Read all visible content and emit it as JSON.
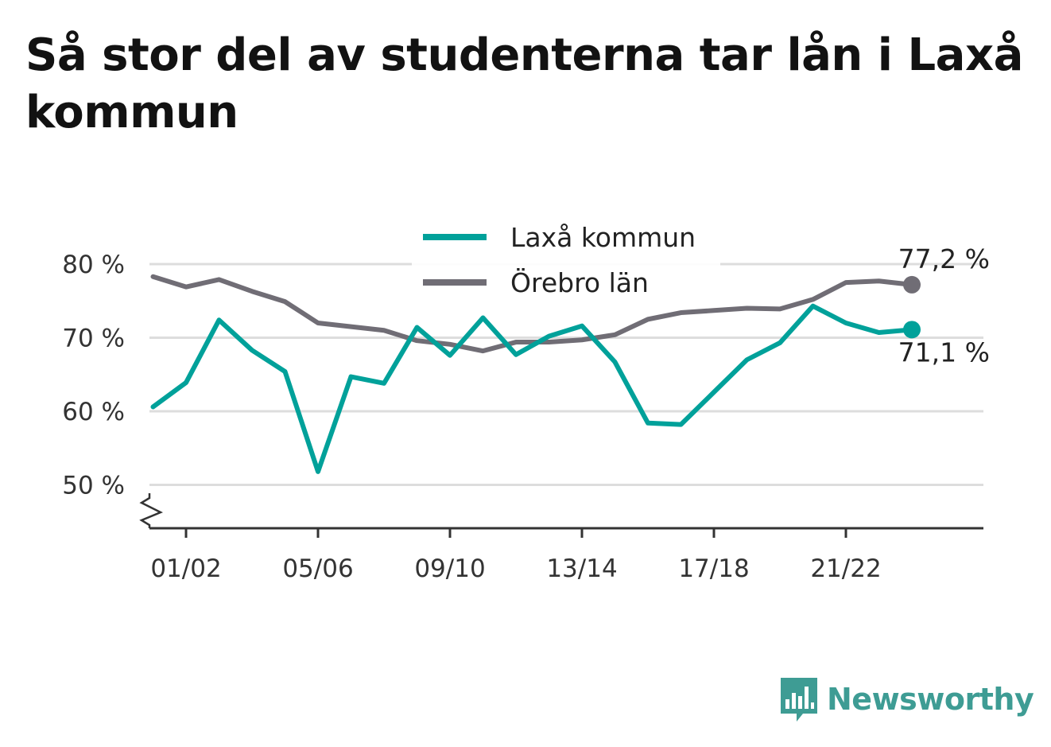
{
  "title": "Så stor del av studenterna tar lån i Laxå kommun",
  "brand": {
    "name": "Newsworthy"
  },
  "colors": {
    "laxa": "#00a19a",
    "orebro": "#706d75",
    "grid": "#dddddd",
    "axis": "#333333"
  },
  "chart_data": {
    "type": "line",
    "title": "Så stor del av studenterna tar lån i Laxå kommun",
    "x": [
      "00/01",
      "01/02",
      "02/03",
      "03/04",
      "04/05",
      "05/06",
      "06/07",
      "07/08",
      "08/09",
      "09/10",
      "10/11",
      "11/12",
      "12/13",
      "13/14",
      "14/15",
      "15/16",
      "16/17",
      "17/18",
      "18/19",
      "19/20",
      "20/21",
      "21/22",
      "22/23",
      "23/24",
      "24/25"
    ],
    "x_ticks": [
      "01/02",
      "05/06",
      "09/10",
      "13/14",
      "17/18",
      "21/22"
    ],
    "y_ticks": [
      "50 %",
      "60 %",
      "70 %",
      "80 %"
    ],
    "y_tick_values": [
      50,
      60,
      70,
      80
    ],
    "ylim": [
      44,
      80
    ],
    "axis_break": true,
    "legend_position": "top-center",
    "series": [
      {
        "name": "Laxå kommun",
        "color": "#00a19a",
        "values": [
          60.6,
          63.9,
          72.4,
          68.3,
          65.4,
          51.8,
          64.7,
          63.8,
          71.4,
          67.6,
          72.7,
          67.7,
          70.2,
          71.6,
          66.7,
          58.4,
          58.2,
          62.6,
          67.0,
          69.3,
          74.3,
          72.0,
          70.7,
          71.1,
          null
        ],
        "end_label": "71,1 %"
      },
      {
        "name": "Örebro län",
        "color": "#706d75",
        "values": [
          78.3,
          76.9,
          77.9,
          76.3,
          74.9,
          72.0,
          71.5,
          71.0,
          69.6,
          69.1,
          68.2,
          69.4,
          69.4,
          69.7,
          70.4,
          72.5,
          73.4,
          73.7,
          74.0,
          73.9,
          75.2,
          77.5,
          77.7,
          77.2,
          null
        ],
        "end_label": "77,2 %"
      }
    ]
  }
}
